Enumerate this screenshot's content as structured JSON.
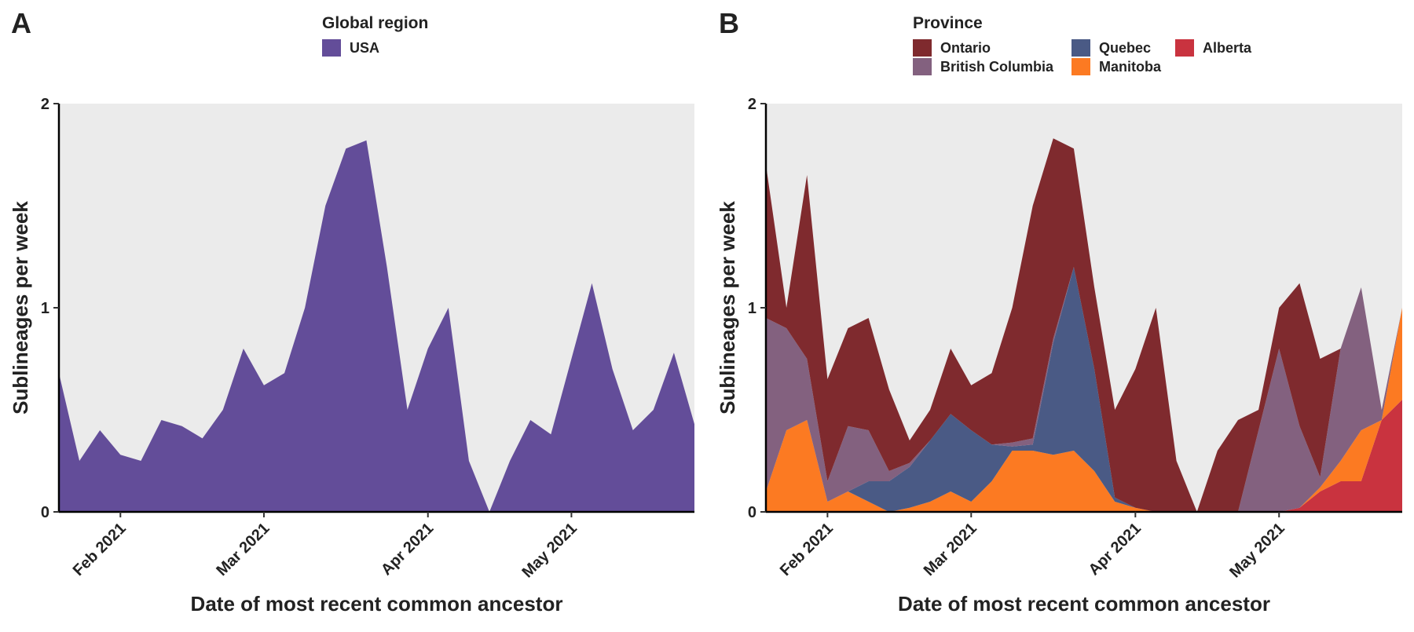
{
  "chart_data": [
    {
      "type": "area",
      "panel_label": "A",
      "legend_title": "Global region",
      "x_label": "Date of most recent common ancestor",
      "y_label": "Sublineages per week",
      "categories": [
        null,
        null,
        null,
        "Feb 2021",
        null,
        null,
        null,
        null,
        null,
        null,
        "Mar 2021",
        null,
        null,
        null,
        null,
        null,
        null,
        null,
        "Apr 2021",
        null,
        null,
        null,
        null,
        null,
        null,
        "May 2021",
        null,
        null,
        null,
        null,
        null,
        null
      ],
      "series": [
        {
          "name": "USA",
          "color": "#634d99",
          "values": [
            0.68,
            0.25,
            0.4,
            0.28,
            0.25,
            0.45,
            0.42,
            0.36,
            0.5,
            0.8,
            0.62,
            0.68,
            1.0,
            1.5,
            1.78,
            1.82,
            1.2,
            0.5,
            0.8,
            1.0,
            0.25,
            0,
            0.25,
            0.45,
            0.38,
            0.75,
            1.12,
            0.7,
            0.4,
            0.5,
            0.78,
            0.43
          ]
        }
      ],
      "ylim": [
        0,
        2
      ],
      "yticks": [
        0,
        1,
        2
      ],
      "background": "#ebebeb"
    },
    {
      "type": "area",
      "stacked": true,
      "panel_label": "B",
      "legend_title": "Province",
      "x_label": "Date of most recent common ancestor",
      "y_label": "Sublineages per week",
      "categories": [
        null,
        null,
        null,
        "Feb 2021",
        null,
        null,
        null,
        null,
        null,
        null,
        "Mar 2021",
        null,
        null,
        null,
        null,
        null,
        null,
        null,
        "Apr 2021",
        null,
        null,
        null,
        null,
        null,
        null,
        "May 2021",
        null,
        null,
        null,
        null,
        null,
        null
      ],
      "series": [
        {
          "name": "Ontario",
          "color": "#7f2a2e",
          "values": [
            0.75,
            0.1,
            0.9,
            0.5,
            0.48,
            0.55,
            0.4,
            0.11,
            0.15,
            0.32,
            0.22,
            0.35,
            0.66,
            1.14,
            0.98,
            0.58,
            0.4,
            0.43,
            0.68,
            1.0,
            0.25,
            0,
            0.3,
            0.45,
            0.1,
            0.2,
            0.7,
            0.58,
            0,
            0,
            0,
            0
          ]
        },
        {
          "name": "British Columbia",
          "color": "#83617f",
          "values": [
            0.85,
            0.5,
            0.3,
            0.1,
            0.32,
            0.25,
            0.05,
            0.02,
            0,
            0,
            0,
            0,
            0.02,
            0.03,
            0.02,
            0,
            0,
            0,
            0,
            0,
            0,
            0,
            0,
            0,
            0.4,
            0.8,
            0.4,
            0.05,
            0.55,
            0.7,
            0.05,
            0
          ]
        },
        {
          "name": "Quebec",
          "color": "#4a5a85",
          "values": [
            0,
            0,
            0,
            0,
            0,
            0.1,
            0.15,
            0.2,
            0.3,
            0.38,
            0.35,
            0.18,
            0.02,
            0.03,
            0.55,
            0.9,
            0.5,
            0.02,
            0,
            0,
            0,
            0,
            0,
            0,
            0,
            0,
            0,
            0,
            0,
            0,
            0,
            0
          ]
        },
        {
          "name": "Manitoba",
          "color": "#fc7a22",
          "values": [
            0.1,
            0.4,
            0.45,
            0.05,
            0.1,
            0.05,
            0,
            0.02,
            0.05,
            0.1,
            0.05,
            0.15,
            0.3,
            0.3,
            0.28,
            0.3,
            0.2,
            0.05,
            0.02,
            0,
            0,
            0,
            0,
            0,
            0,
            0,
            0,
            0.02,
            0.1,
            0.25,
            0,
            0.45
          ]
        },
        {
          "name": "Alberta",
          "color": "#c9333f",
          "values": [
            0,
            0,
            0,
            0,
            0,
            0,
            0,
            0,
            0,
            0,
            0,
            0,
            0,
            0,
            0,
            0,
            0,
            0,
            0,
            0,
            0,
            0,
            0,
            0,
            0,
            0,
            0.02,
            0.1,
            0.15,
            0.15,
            0.45,
            0.55
          ]
        }
      ],
      "ylim": [
        0,
        2
      ],
      "yticks": [
        0,
        1,
        2
      ],
      "background": "#ebebeb"
    }
  ]
}
